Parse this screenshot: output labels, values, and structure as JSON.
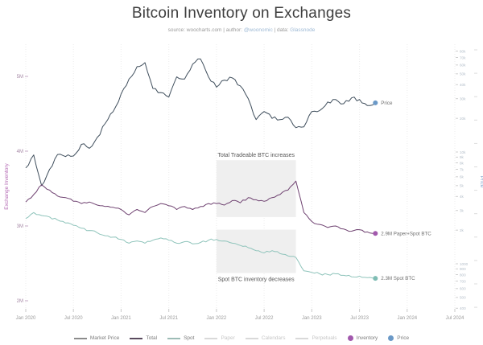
{
  "header": {
    "title": "Bitcoin Inventory on Exchanges",
    "subtitle_prefix": "source: woocharts.com | author: ",
    "author_link": "@woonomic",
    "subtitle_mid": " | data: ",
    "data_link": "Glassnode"
  },
  "chart_data": {
    "type": "line",
    "title": "Bitcoin Inventory on Exchanges",
    "x_axis": {
      "unit": "month-index from Jan 2020",
      "ticks": [
        {
          "m": 0,
          "label": "Jan 2020"
        },
        {
          "m": 6,
          "label": "Jul 2020"
        },
        {
          "m": 12,
          "label": "Jan 2021"
        },
        {
          "m": 18,
          "label": "Jul 2021"
        },
        {
          "m": 24,
          "label": "Jan 2022"
        },
        {
          "m": 30,
          "label": "Jul 2022"
        },
        {
          "m": 36,
          "label": "Jan 2023"
        },
        {
          "m": 42,
          "label": "Jul 2023"
        },
        {
          "m": 48,
          "label": "Jan 2024"
        },
        {
          "m": 54,
          "label": "Jul 2024"
        }
      ],
      "grid": "faint dotted vertical lines"
    },
    "y_left": {
      "title": "Exchange Inventory",
      "scale": "linear",
      "unit": "M BTC",
      "color": "#b46ab4",
      "ticks": [
        {
          "label": "5M",
          "v": 5
        },
        {
          "label": "4M",
          "v": 4
        },
        {
          "label": "3M",
          "v": 3
        },
        {
          "label": "2M",
          "v": 2
        }
      ],
      "range": [
        1.85,
        5.45
      ]
    },
    "y_right": {
      "title": "Price",
      "scale": "log",
      "unit": "USD",
      "color": "#8aa9cf",
      "ticks": [
        {
          "label": "80k",
          "v": 80000
        },
        {
          "label": "70k",
          "v": 70000
        },
        {
          "label": "60k",
          "v": 60000
        },
        {
          "label": "50k",
          "v": 50000
        },
        {
          "label": "40k",
          "v": 40000
        },
        {
          "label": "30k",
          "v": 30000
        },
        {
          "label": "20k",
          "v": 20000
        },
        {
          "label": "10k",
          "v": 10000
        },
        {
          "label": "9k",
          "v": 9000
        },
        {
          "label": "8k",
          "v": 8000
        },
        {
          "label": "7k",
          "v": 7000
        },
        {
          "label": "6k",
          "v": 6000
        },
        {
          "label": "5k",
          "v": 5000
        },
        {
          "label": "4k",
          "v": 4000
        },
        {
          "label": "3k",
          "v": 3000
        },
        {
          "label": "2k",
          "v": 2000
        },
        {
          "label": "1000",
          "v": 1000
        },
        {
          "label": "900",
          "v": 900
        },
        {
          "label": "800",
          "v": 800
        },
        {
          "label": "700",
          "v": 700
        },
        {
          "label": "600",
          "v": 600
        },
        {
          "label": "500",
          "v": 500
        },
        {
          "label": "400",
          "v": 400
        }
      ],
      "range": [
        400,
        90000
      ]
    },
    "series": [
      {
        "name": "Market Price",
        "axis": "price",
        "color": "#3f4e5c",
        "end_label": "Price",
        "end_dot_color": "#6b99c7",
        "points": [
          [
            0,
            7200
          ],
          [
            1,
            9400
          ],
          [
            2,
            5000
          ],
          [
            3,
            7000
          ],
          [
            4,
            9500
          ],
          [
            5,
            9100
          ],
          [
            6,
            9200
          ],
          [
            7,
            11700
          ],
          [
            8,
            10800
          ],
          [
            9,
            13500
          ],
          [
            10,
            18000
          ],
          [
            11,
            23000
          ],
          [
            12,
            33000
          ],
          [
            13,
            45000
          ],
          [
            14,
            58000
          ],
          [
            15,
            63000
          ],
          [
            16,
            37000
          ],
          [
            17,
            34000
          ],
          [
            18,
            31000
          ],
          [
            19,
            47000
          ],
          [
            20,
            45000
          ],
          [
            21,
            61000
          ],
          [
            22,
            68000
          ],
          [
            23,
            47000
          ],
          [
            24,
            38000
          ],
          [
            25,
            44000
          ],
          [
            26,
            46000
          ],
          [
            27,
            39000
          ],
          [
            28,
            30000
          ],
          [
            29,
            19500
          ],
          [
            30,
            23000
          ],
          [
            31,
            20000
          ],
          [
            32,
            19500
          ],
          [
            33,
            20500
          ],
          [
            34,
            16500
          ],
          [
            35,
            16800
          ],
          [
            36,
            23000
          ],
          [
            37,
            23500
          ],
          [
            38,
            28000
          ],
          [
            39,
            29500
          ],
          [
            40,
            27000
          ],
          [
            41,
            30500
          ],
          [
            42,
            29500
          ],
          [
            43,
            26000
          ],
          [
            44,
            27500
          ]
        ]
      },
      {
        "name": "Total",
        "axis": "inventory",
        "color": "#6e4170",
        "end_label": "2.9M Paper+Spot BTC",
        "end_dot_color": "#a259ad",
        "points": [
          [
            0,
            3.32
          ],
          [
            1,
            3.42
          ],
          [
            2,
            3.55
          ],
          [
            3,
            3.48
          ],
          [
            4,
            3.4
          ],
          [
            5,
            3.38
          ],
          [
            6,
            3.33
          ],
          [
            7,
            3.3
          ],
          [
            8,
            3.32
          ],
          [
            9,
            3.28
          ],
          [
            10,
            3.26
          ],
          [
            11,
            3.25
          ],
          [
            12,
            3.22
          ],
          [
            13,
            3.15
          ],
          [
            14,
            3.22
          ],
          [
            15,
            3.18
          ],
          [
            16,
            3.26
          ],
          [
            17,
            3.3
          ],
          [
            18,
            3.27
          ],
          [
            19,
            3.22
          ],
          [
            20,
            3.26
          ],
          [
            21,
            3.22
          ],
          [
            22,
            3.26
          ],
          [
            23,
            3.3
          ],
          [
            24,
            3.3
          ],
          [
            25,
            3.28
          ],
          [
            26,
            3.34
          ],
          [
            27,
            3.31
          ],
          [
            28,
            3.38
          ],
          [
            29,
            3.35
          ],
          [
            30,
            3.33
          ],
          [
            31,
            3.38
          ],
          [
            32,
            3.42
          ],
          [
            33,
            3.48
          ],
          [
            34,
            3.6
          ],
          [
            35,
            3.18
          ],
          [
            36,
            3.06
          ],
          [
            37,
            3.02
          ],
          [
            38,
            2.98
          ],
          [
            39,
            3.0
          ],
          [
            40,
            2.96
          ],
          [
            41,
            2.93
          ],
          [
            42,
            2.95
          ],
          [
            43,
            2.92
          ],
          [
            44,
            2.9
          ]
        ]
      },
      {
        "name": "Spot",
        "axis": "inventory",
        "color": "#8fc4bb",
        "end_label": "2.3M Spot BTC",
        "end_dot_color": "#7fbdb4",
        "points": [
          [
            0,
            3.1
          ],
          [
            1,
            3.18
          ],
          [
            2,
            3.14
          ],
          [
            3,
            3.12
          ],
          [
            4,
            3.08
          ],
          [
            5,
            3.04
          ],
          [
            6,
            3.01
          ],
          [
            7,
            2.97
          ],
          [
            8,
            2.94
          ],
          [
            9,
            2.91
          ],
          [
            10,
            2.87
          ],
          [
            11,
            2.85
          ],
          [
            12,
            2.82
          ],
          [
            13,
            2.77
          ],
          [
            14,
            2.8
          ],
          [
            15,
            2.77
          ],
          [
            16,
            2.81
          ],
          [
            17,
            2.84
          ],
          [
            18,
            2.81
          ],
          [
            19,
            2.77
          ],
          [
            20,
            2.79
          ],
          [
            21,
            2.76
          ],
          [
            22,
            2.78
          ],
          [
            23,
            2.81
          ],
          [
            24,
            2.82
          ],
          [
            25,
            2.8
          ],
          [
            26,
            2.77
          ],
          [
            27,
            2.74
          ],
          [
            28,
            2.71
          ],
          [
            29,
            2.67
          ],
          [
            30,
            2.64
          ],
          [
            31,
            2.67
          ],
          [
            32,
            2.63
          ],
          [
            33,
            2.6
          ],
          [
            34,
            2.58
          ],
          [
            35,
            2.4
          ],
          [
            36,
            2.38
          ],
          [
            37,
            2.36
          ],
          [
            38,
            2.35
          ],
          [
            39,
            2.36
          ],
          [
            40,
            2.34
          ],
          [
            41,
            2.32
          ],
          [
            42,
            2.33
          ],
          [
            43,
            2.31
          ],
          [
            44,
            2.3
          ]
        ]
      }
    ],
    "annotations": [
      {
        "text": "Total Tradeable BTC increases",
        "m0": 24,
        "m1": 34,
        "v0": 3.12,
        "v1": 3.88,
        "label_pos": "above"
      },
      {
        "text": "Spot BTC inventory decreases",
        "m0": 24,
        "m1": 34,
        "v0": 2.37,
        "v1": 2.95,
        "label_pos": "below"
      }
    ],
    "annotation_box_color": "#efefef",
    "annotation_text_color": "#555555"
  },
  "legend": {
    "items": [
      {
        "label": "Market Price",
        "swatch": "line",
        "color": "#8c8c8c",
        "enabled": true
      },
      {
        "label": "Total",
        "swatch": "line",
        "color": "#5a4a5e",
        "enabled": true
      },
      {
        "label": "Spot",
        "swatch": "line",
        "color": "#9dbcb6",
        "enabled": true
      },
      {
        "label": "Paper",
        "swatch": "line",
        "color": "#d9d9d9",
        "enabled": false
      },
      {
        "label": "Calendars",
        "swatch": "line",
        "color": "#d9d9d9",
        "enabled": false
      },
      {
        "label": "Perpetuals",
        "swatch": "line",
        "color": "#d9d9d9",
        "enabled": false
      },
      {
        "label": "Inventory",
        "swatch": "dot",
        "color": "#a259ad",
        "enabled": true
      },
      {
        "label": "Price",
        "swatch": "dot",
        "color": "#6b99c7",
        "enabled": true
      }
    ]
  }
}
